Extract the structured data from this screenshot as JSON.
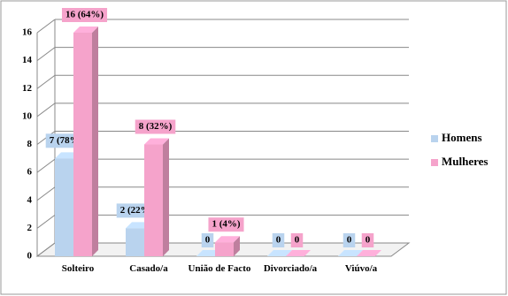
{
  "chart_data": {
    "type": "bar3d",
    "categories": [
      "Solteiro",
      "Casado/a",
      "União de Facto",
      "Divorciado/a",
      "Viúvo/a"
    ],
    "series": [
      {
        "name": "Homens",
        "color": "#b9d3ee",
        "values": [
          7,
          2,
          0,
          0,
          0
        ],
        "value_labels": [
          "7 (78%)",
          "2 (22%)",
          "0",
          "0",
          "0"
        ]
      },
      {
        "name": "Mulheres",
        "color": "#f5a3cb",
        "values": [
          16,
          8,
          1,
          0,
          0
        ],
        "value_labels": [
          "16 (64%)",
          "8 (32%)",
          "1 (4%)",
          "0",
          "0"
        ]
      }
    ],
    "ylim": [
      0,
      16
    ],
    "yticks": [
      0,
      2,
      4,
      6,
      8,
      10,
      12,
      14,
      16
    ],
    "grid": true,
    "legend": "right"
  }
}
